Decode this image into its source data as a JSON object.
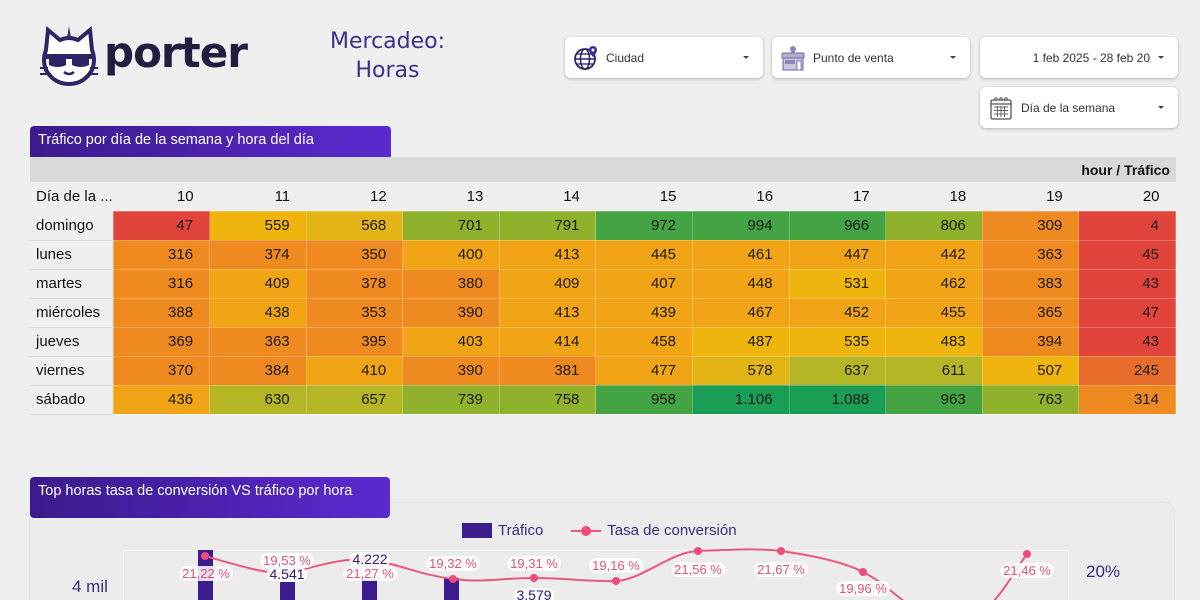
{
  "header": {
    "logo_text": "porter",
    "title_line1": "Mercadeo:",
    "title_line2": "Horas"
  },
  "filters": {
    "ciudad": {
      "label": "Ciudad",
      "icon": "globe-pin-icon"
    },
    "punto_venta": {
      "label": "Punto de venta",
      "icon": "storefront-icon"
    },
    "fecha": {
      "label": "1 feb 2025 - 28 feb 20"
    },
    "dia_semana": {
      "label": "Día de la semana",
      "icon": "calendar-icon"
    }
  },
  "heatmap": {
    "title": "Tráfico por día de la semana y hora del día",
    "pivot_label": "hour / Tráfico",
    "row_header": "Día de la ...",
    "hours": [
      "10",
      "11",
      "12",
      "13",
      "14",
      "15",
      "16",
      "17",
      "18",
      "19",
      "20"
    ],
    "rows": [
      {
        "day": "domingo",
        "values": [
          "47",
          "559",
          "568",
          "701",
          "791",
          "972",
          "994",
          "966",
          "806",
          "309",
          "4"
        ]
      },
      {
        "day": "lunes",
        "values": [
          "316",
          "374",
          "350",
          "400",
          "413",
          "445",
          "461",
          "447",
          "442",
          "363",
          "45"
        ]
      },
      {
        "day": "martes",
        "values": [
          "316",
          "409",
          "378",
          "380",
          "409",
          "407",
          "448",
          "531",
          "462",
          "383",
          "43"
        ]
      },
      {
        "day": "miércoles",
        "values": [
          "388",
          "438",
          "353",
          "390",
          "413",
          "439",
          "467",
          "452",
          "455",
          "365",
          "47"
        ]
      },
      {
        "day": "jueves",
        "values": [
          "369",
          "363",
          "395",
          "403",
          "414",
          "458",
          "487",
          "535",
          "483",
          "394",
          "43"
        ]
      },
      {
        "day": "viernes",
        "values": [
          "370",
          "384",
          "410",
          "390",
          "381",
          "477",
          "578",
          "637",
          "611",
          "507",
          "245"
        ]
      },
      {
        "day": "sábado",
        "values": [
          "436",
          "630",
          "657",
          "739",
          "758",
          "958",
          "1.106",
          "1.088",
          "963",
          "763",
          "314"
        ]
      }
    ],
    "colors": {
      "red": "#e0443a",
      "orange": "#ee8a20",
      "amber": "#f1a516",
      "yellow": "#efb50e",
      "olive": "#b5b625",
      "lightgreen": "#8fb12c",
      "green": "#44a444",
      "darkgreen": "#1a9e55"
    }
  },
  "combo_chart": {
    "title": "Top horas  tasa de conversión VS tráfico por hora",
    "legend_bar": "Tráfico",
    "legend_line": "Tasa de conversión",
    "y_left_tick": "4 mil",
    "y_right_tick": "20%",
    "bar_color": "#3b1c8c",
    "line_color": "#ef4b7d"
  },
  "chart_data": {
    "type": "bar+line",
    "title": "Top horas  tasa de conversión VS tráfico por hora",
    "series": [
      {
        "name": "Tráfico",
        "type": "bar",
        "values": [
          null,
          4541,
          4222,
          null,
          3579,
          null,
          null,
          null,
          null,
          null,
          null
        ]
      },
      {
        "name": "Tasa de conversión",
        "type": "line",
        "values_pct": [
          21.22,
          19.53,
          21.27,
          19.32,
          19.31,
          19.16,
          21.56,
          21.67,
          19.96,
          null,
          21.46
        ]
      }
    ],
    "visible_labels": {
      "traffic": [
        "4.541",
        "4.222",
        "3.579"
      ],
      "conversion": [
        "21,22 %",
        "19,53 %",
        "21,27 %",
        "19,32 %",
        "19,31 %",
        "19,16 %",
        "21,56 %",
        "21,67 %",
        "19,96 %",
        "21,46 %"
      ]
    },
    "y_left_ticks": [
      "4 mil"
    ],
    "y_right_ticks": [
      "20%"
    ]
  }
}
